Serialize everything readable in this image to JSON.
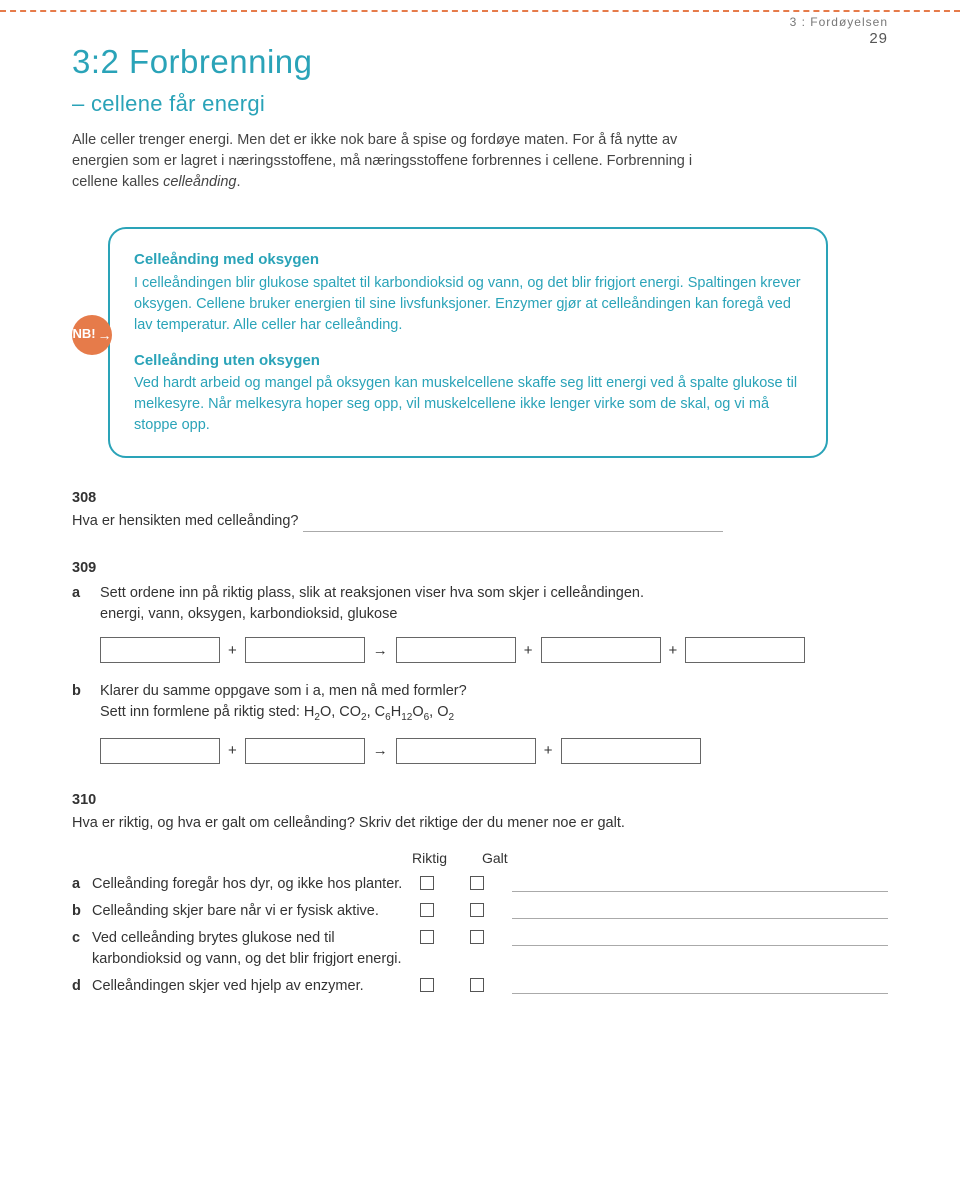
{
  "header": {
    "breadcrumb": "3 : Fordøyelsen",
    "page_number": "29"
  },
  "title": {
    "section": "3:2  Forbrenning",
    "subtitle": "– cellene får energi"
  },
  "intro": {
    "p1": "Alle celler trenger energi. Men det er ikke nok bare å spise og fordøye maten. For å få nytte av energien som er lagret i næringsstoffene, må næringsstoffene forbrennes i cellene. Forbrenning i cellene kalles ",
    "em": "celleånding",
    "p1_end": "."
  },
  "nb": {
    "badge": "NB!",
    "block1_title": "Celleånding med oksygen",
    "block1_text": "I celleåndingen blir glukose spaltet til karbondioksid og vann, og det blir frigjort energi. Spaltingen krever oksygen. Cellene bruker energien til sine livsfunksjoner. Enzymer gjør at celleåndingen kan foregå ved lav temperatur. Alle celler har celleånding.",
    "block2_title": "Celleånding uten oksygen",
    "block2_text": "Ved hardt arbeid og mangel på oksygen kan muskelcellene skaffe seg litt energi ved å spalte glukose til melkesyre. Når melkesyra hoper seg opp, vil muskelcellene ikke lenger virke som de skal, og vi må stoppe opp."
  },
  "q308": {
    "num": "308",
    "text": "Hva er hensikten med celleånding? "
  },
  "q309": {
    "num": "309",
    "a_text": "Sett ordene inn på riktig plass, slik at reaksjonen viser hva som skjer i celleåndingen.",
    "a_words": "energi, vann, oksygen, karbondioksid, glukose",
    "b_text": "Klarer du samme oppgave som i a, men nå med formler?",
    "b_text2_pre": "Sett inn formlene på riktig sted: H",
    "sym_plus": "+",
    "sym_arrow": "→"
  },
  "q310": {
    "num": "310",
    "text": "Hva er riktig, og hva er galt om celleånding? Skriv det riktige der du mener noe er galt.",
    "col_r": "Riktig",
    "col_g": "Galt",
    "rows": [
      {
        "l": "a",
        "t": "Celleånding foregår hos dyr, og ikke hos planter."
      },
      {
        "l": "b",
        "t": "Celleånding skjer bare når vi er fysisk aktive."
      },
      {
        "l": "c",
        "t": "Ved celleånding brytes glukose ned til karbondioksid og vann, og det blir frigjort energi."
      },
      {
        "l": "d",
        "t": "Celleåndingen skjer ved hjelp av enzymer."
      }
    ]
  }
}
